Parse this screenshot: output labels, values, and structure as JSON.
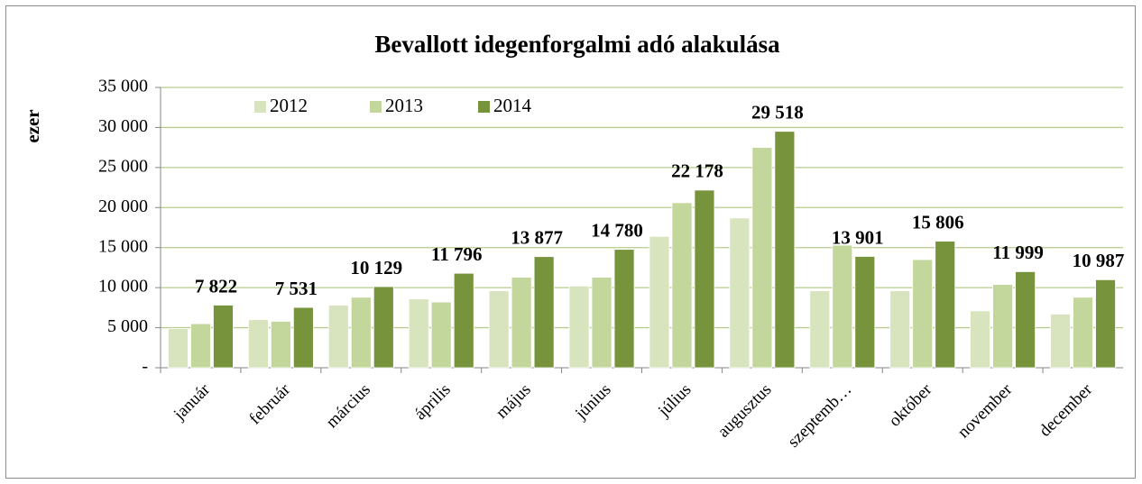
{
  "chart_data": {
    "type": "bar",
    "title": "Bevallott idegenforgalmi adó  alakulása",
    "y_label": "ezer",
    "categories": [
      "január",
      "február",
      "március",
      "április",
      "május",
      "június",
      "július",
      "augusztus",
      "szeptemb…",
      "október",
      "november",
      "december"
    ],
    "series": [
      {
        "name": "2012",
        "color": "#d7e4bd",
        "values": [
          4900,
          6000,
          7800,
          8600,
          9600,
          10200,
          16400,
          18700,
          9600,
          9600,
          7100,
          6700
        ]
      },
      {
        "name": "2013",
        "color": "#c3d69b",
        "values": [
          5500,
          5800,
          8800,
          8200,
          11300,
          11300,
          20600,
          27500,
          15300,
          13500,
          10400,
          8800
        ]
      },
      {
        "name": "2014",
        "color": "#77933c",
        "values": [
          7822,
          7531,
          10129,
          11796,
          13877,
          14780,
          22178,
          29518,
          13901,
          15806,
          11999,
          10987
        ],
        "value_labels": [
          "7 822",
          "7 531",
          "10 129",
          "11 796",
          "13 877",
          "14 780",
          "22 178",
          "29 518",
          "13 901",
          "15 806",
          "11 999",
          "10 987"
        ]
      }
    ],
    "ylim": [
      0,
      35000
    ],
    "yticks": [
      {
        "value": 0,
        "label": "-"
      },
      {
        "value": 5000,
        "label": "5 000"
      },
      {
        "value": 10000,
        "label": "10 000"
      },
      {
        "value": 15000,
        "label": "15 000"
      },
      {
        "value": 20000,
        "label": "20 000"
      },
      {
        "value": 25000,
        "label": "25 000"
      },
      {
        "value": 30000,
        "label": "30 000"
      },
      {
        "value": 35000,
        "label": "35 000"
      }
    ],
    "grid": true,
    "legend": "top-left"
  }
}
